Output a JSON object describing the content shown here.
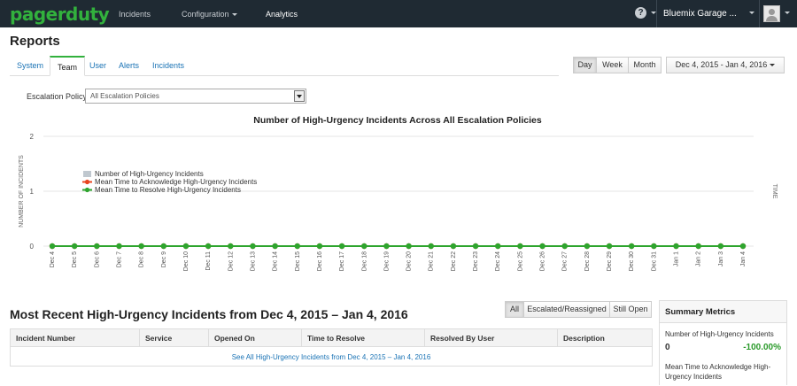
{
  "topbar": {
    "logo": "pagerduty",
    "nav": [
      {
        "label": "Incidents"
      },
      {
        "label": "Configuration"
      },
      {
        "label": "Analytics"
      }
    ],
    "help_label": "?",
    "account": "Bluemix Garage ..."
  },
  "page": {
    "title": "Reports"
  },
  "tabs": [
    {
      "label": "System"
    },
    {
      "label": "Team"
    },
    {
      "label": "User"
    },
    {
      "label": "Alerts"
    },
    {
      "label": "Incidents"
    }
  ],
  "range_buttons": [
    {
      "label": "Day"
    },
    {
      "label": "Week"
    },
    {
      "label": "Month"
    }
  ],
  "date_range": "Dec 4, 2015 - Jan 4, 2016",
  "filter": {
    "label": "Escalation Policy:",
    "value": "All Escalation Policies"
  },
  "chart_data": {
    "type": "line",
    "title": "Number of High-Urgency Incidents Across All Escalation Policies",
    "ylabel": "NUMBER OF INCIDENTS",
    "y2label": "TIME",
    "ylim": [
      0,
      2
    ],
    "yticks": [
      "2",
      "1",
      "0"
    ],
    "legend_position": "left",
    "categories": [
      "Dec 4",
      "Dec 5",
      "Dec 6",
      "Dec 7",
      "Dec 8",
      "Dec 9",
      "Dec 10",
      "Dec 11",
      "Dec 12",
      "Dec 13",
      "Dec 14",
      "Dec 15",
      "Dec 16",
      "Dec 17",
      "Dec 18",
      "Dec 19",
      "Dec 20",
      "Dec 21",
      "Dec 22",
      "Dec 23",
      "Dec 24",
      "Dec 25",
      "Dec 26",
      "Dec 27",
      "Dec 28",
      "Dec 29",
      "Dec 30",
      "Dec 31",
      "Jan 1",
      "Jan 2",
      "Jan 3",
      "Jan 4"
    ],
    "series": [
      {
        "name": "Number of High-Urgency Incidents",
        "color": "#c0c8cf",
        "values": [
          0,
          0,
          0,
          0,
          0,
          0,
          0,
          0,
          0,
          0,
          0,
          0,
          0,
          0,
          0,
          0,
          0,
          0,
          0,
          0,
          0,
          0,
          0,
          0,
          0,
          0,
          0,
          0,
          0,
          0,
          0,
          0
        ]
      },
      {
        "name": "Mean Time to Acknowledge High-Urgency Incidents",
        "color": "#e8441f",
        "values": [
          0,
          0,
          0,
          0,
          0,
          0,
          0,
          0,
          0,
          0,
          0,
          0,
          0,
          0,
          0,
          0,
          0,
          0,
          0,
          0,
          0,
          0,
          0,
          0,
          0,
          0,
          0,
          0,
          0,
          0,
          0,
          0
        ]
      },
      {
        "name": "Mean Time to Resolve High-Urgency Incidents",
        "color": "#2ea52e",
        "values": [
          0,
          0,
          0,
          0,
          0,
          0,
          0,
          0,
          0,
          0,
          0,
          0,
          0,
          0,
          0,
          0,
          0,
          0,
          0,
          0,
          0,
          0,
          0,
          0,
          0,
          0,
          0,
          0,
          0,
          0,
          0,
          0
        ]
      }
    ]
  },
  "incidents": {
    "title": "Most Recent High-Urgency Incidents from Dec 4, 2015 – Jan 4, 2016",
    "filters": [
      {
        "label": "All"
      },
      {
        "label": "Escalated/Reassigned"
      },
      {
        "label": "Still Open"
      }
    ],
    "columns": [
      "Incident Number",
      "Service",
      "Opened On",
      "Time to Resolve",
      "Resolved By User",
      "Description"
    ],
    "see_all": "See All High-Urgency Incidents from Dec 4, 2015 – Jan 4, 2016"
  },
  "summary": {
    "title": "Summary Metrics",
    "metrics": [
      {
        "label": "Number of High-Urgency Incidents",
        "value": "0",
        "change": "-100.00%"
      },
      {
        "label": "Mean Time to Acknowledge High-Urgency Incidents"
      }
    ]
  }
}
